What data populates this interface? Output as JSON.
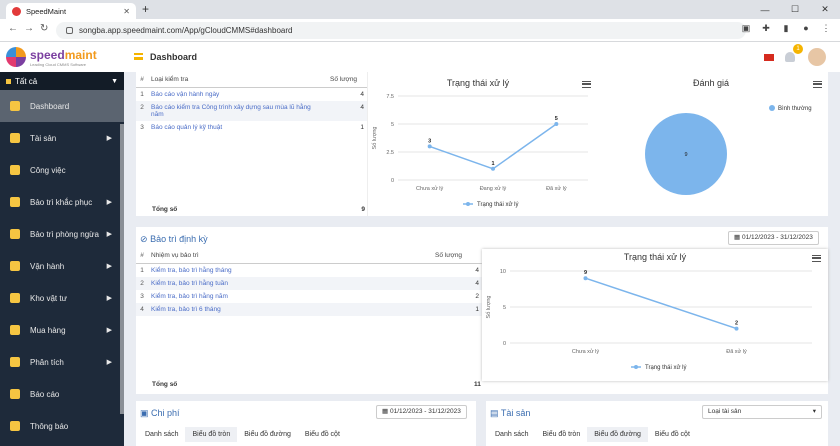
{
  "browser": {
    "tab_title": "SpeedMaint",
    "url": "songba.app.speedmaint.com/App/gCloudCMMS#dashboard"
  },
  "logo": {
    "name1": "speed",
    "name2": "maint",
    "tagline": "Leading Cloud CMMS Software"
  },
  "sidebar": {
    "scope": "Tất cả",
    "items": [
      {
        "label": "Dashboard",
        "arrow": ""
      },
      {
        "label": "Tài sản",
        "arrow": "▶"
      },
      {
        "label": "Công việc",
        "arrow": ""
      },
      {
        "label": "Bảo trì khắc phục",
        "arrow": "▶"
      },
      {
        "label": "Bảo trì phòng ngừa",
        "arrow": "▶"
      },
      {
        "label": "Vận hành",
        "arrow": "▶"
      },
      {
        "label": "Kho vật tư",
        "arrow": "▶"
      },
      {
        "label": "Mua hàng",
        "arrow": "▶"
      },
      {
        "label": "Phân tích",
        "arrow": "▶"
      },
      {
        "label": "Báo cáo",
        "arrow": ""
      },
      {
        "label": "Thông báo",
        "arrow": ""
      }
    ]
  },
  "header": {
    "title": "Dashboard",
    "notif_count": "1"
  },
  "report_panel": {
    "columns": [
      "#",
      "Loại kiểm tra",
      "Số lượng"
    ],
    "rows": [
      {
        "n": "1",
        "name": "Báo cáo vận hành ngày",
        "count": "4"
      },
      {
        "n": "2",
        "name": "Báo cáo kiểm tra Công trình xây dựng sau mùa lũ hằng năm",
        "count": "4"
      },
      {
        "n": "3",
        "name": "Báo cáo quản lý kỹ thuật",
        "count": "1"
      }
    ],
    "total_label": "Tổng số",
    "total_value": "9"
  },
  "chart1": {
    "title": "Trạng thái xử lý",
    "ylabel": "Số lượng",
    "legend": "Trạng thái xử lý"
  },
  "chart2": {
    "title": "Đánh giá",
    "legend": "Bình thường"
  },
  "pm_panel": {
    "title": "Bảo trì định kỳ",
    "date_range": "01/12/2023 - 31/12/2023",
    "columns": [
      "#",
      "Nhiệm vụ bảo trì",
      "Số lượng"
    ],
    "rows": [
      {
        "n": "1",
        "name": "Kiểm tra, bảo trì hằng tháng",
        "count": "4"
      },
      {
        "n": "2",
        "name": "Kiểm tra, bảo trì hằng tuần",
        "count": "4"
      },
      {
        "n": "3",
        "name": "Kiểm tra, bảo trì hằng năm",
        "count": "2"
      },
      {
        "n": "4",
        "name": "Kiểm tra, bảo trì 6 tháng",
        "count": "1"
      }
    ],
    "total_label": "Tổng số",
    "total_value": "11"
  },
  "chart3": {
    "title": "Trạng thái xử lý",
    "ylabel": "Số lượng",
    "legend": "Trạng thái xử lý"
  },
  "cost_panel": {
    "title": "Chi phí",
    "date_range": "01/12/2023 - 31/12/2023",
    "tabs": [
      "Danh sách",
      "Biểu đồ tròn",
      "Biểu đồ đường",
      "Biểu đồ cột"
    ]
  },
  "asset_panel": {
    "title": "Tài sản",
    "select": "Loại tài sản",
    "tabs": [
      "Danh sách",
      "Biểu đồ tròn",
      "Biểu đồ đường",
      "Biểu đồ cột"
    ]
  },
  "chart_data": [
    {
      "type": "line",
      "title": "Trạng thái xử lý",
      "ylabel": "Số lượng",
      "categories": [
        "Chưa xử lý",
        "Đang xử lý",
        "Đã xử lý"
      ],
      "series": [
        {
          "name": "Trạng thái xử lý",
          "values": [
            3,
            1,
            5
          ]
        }
      ],
      "y_ticks": [
        "0",
        "2.5",
        "5",
        "7.5"
      ],
      "ylim": [
        0,
        7.5
      ],
      "color": "#7cb5ec"
    },
    {
      "type": "pie",
      "title": "Đánh giá",
      "categories": [
        "Bình thường"
      ],
      "values": [
        9
      ],
      "color": "#7cb5ec",
      "legend": "right"
    },
    {
      "type": "line",
      "title": "Trạng thái xử lý",
      "ylabel": "Số lượng",
      "categories": [
        "Chưa xử lý",
        "Đã xử lý"
      ],
      "series": [
        {
          "name": "Trạng thái xử lý",
          "values": [
            9,
            2
          ]
        }
      ],
      "y_ticks": [
        "0",
        "5",
        "10"
      ],
      "ylim": [
        0,
        10
      ],
      "color": "#7cb5ec"
    }
  ]
}
